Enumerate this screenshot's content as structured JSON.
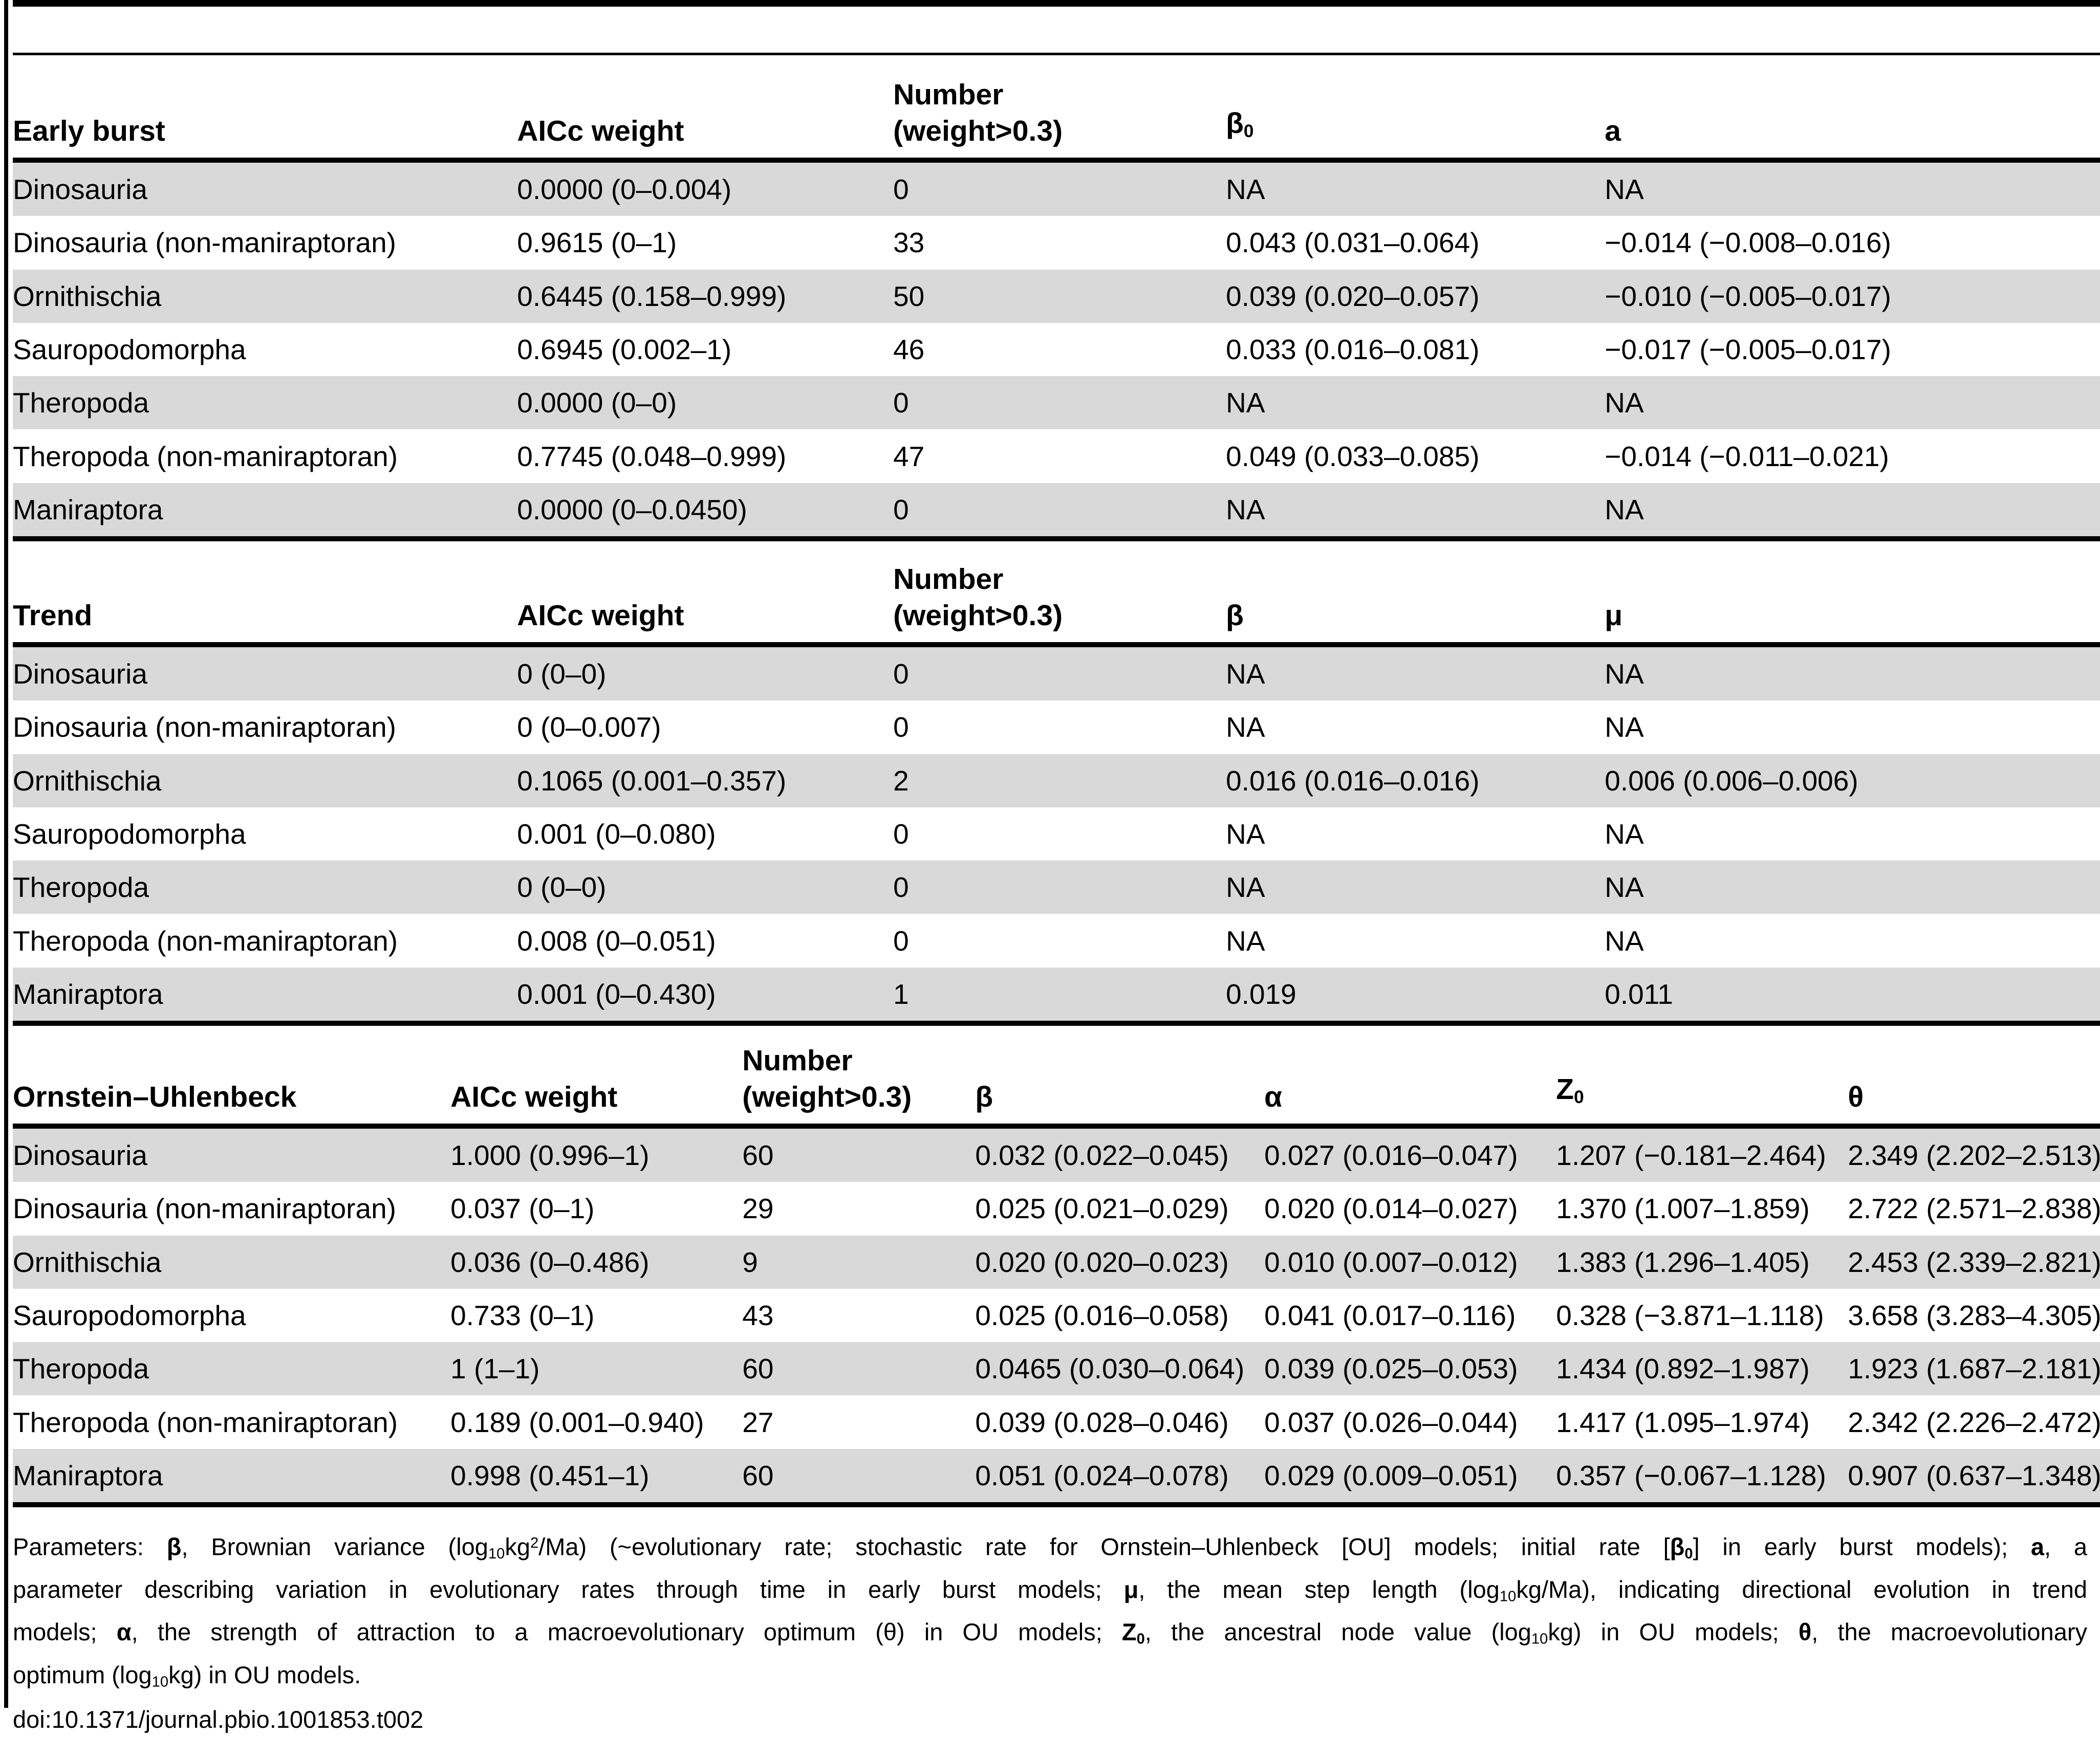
{
  "page": {
    "background": "#ffffff",
    "stripe_color": "#d9d9d9",
    "rule_color": "#000000"
  },
  "tables": [
    {
      "name": "early-burst",
      "headers": [
        {
          "lines": [
            [
              {
                "t": "Early burst"
              }
            ]
          ]
        },
        {
          "lines": [
            [
              {
                "t": "AICc weight"
              }
            ]
          ]
        },
        {
          "lines": [
            [
              {
                "t": "Number"
              }
            ],
            [
              {
                "t": "(weight>0.3)"
              }
            ]
          ]
        },
        {
          "lines": [
            [
              {
                "t": "β"
              },
              {
                "t": "0",
                "s": "sub"
              }
            ]
          ]
        },
        {
          "lines": [
            [
              {
                "t": "a"
              }
            ]
          ]
        }
      ],
      "rows": [
        [
          "Dinosauria",
          "0.0000 (0–0.004)",
          "0",
          "NA",
          "NA"
        ],
        [
          "Dinosauria (non-maniraptoran)",
          "0.9615 (0–1)",
          "33",
          "0.043 (0.031–0.064)",
          "−0.014 (−0.008–0.016)"
        ],
        [
          "Ornithischia",
          "0.6445 (0.158–0.999)",
          "50",
          "0.039 (0.020–0.057)",
          "−0.010 (−0.005–0.017)"
        ],
        [
          "Sauropodomorpha",
          "0.6945 (0.002–1)",
          "46",
          "0.033 (0.016–0.081)",
          "−0.017 (−0.005–0.017)"
        ],
        [
          "Theropoda",
          "0.0000 (0–0)",
          "0",
          "NA",
          "NA"
        ],
        [
          "Theropoda (non-maniraptoran)",
          "0.7745 (0.048–0.999)",
          "47",
          "0.049 (0.033–0.085)",
          "−0.014 (−0.011–0.021)"
        ],
        [
          "Maniraptora",
          "0.0000 (0–0.0450)",
          "0",
          "NA",
          "NA"
        ]
      ]
    },
    {
      "name": "trend",
      "headers": [
        {
          "lines": [
            [
              {
                "t": "Trend"
              }
            ]
          ]
        },
        {
          "lines": [
            [
              {
                "t": "AICc weight"
              }
            ]
          ]
        },
        {
          "lines": [
            [
              {
                "t": "Number"
              }
            ],
            [
              {
                "t": "(weight>0.3)"
              }
            ]
          ]
        },
        {
          "lines": [
            [
              {
                "t": "β"
              }
            ]
          ]
        },
        {
          "lines": [
            [
              {
                "t": "μ"
              }
            ]
          ]
        }
      ],
      "rows": [
        [
          "Dinosauria",
          "0 (0–0)",
          "0",
          "NA",
          "NA"
        ],
        [
          "Dinosauria (non-maniraptoran)",
          "0 (0–0.007)",
          "0",
          "NA",
          "NA"
        ],
        [
          "Ornithischia",
          "0.1065 (0.001–0.357)",
          "2",
          "0.016 (0.016–0.016)",
          "0.006 (0.006–0.006)"
        ],
        [
          "Sauropodomorpha",
          "0.001 (0–0.080)",
          "0",
          "NA",
          "NA"
        ],
        [
          "Theropoda",
          "0 (0–0)",
          "0",
          "NA",
          "NA"
        ],
        [
          "Theropoda (non-maniraptoran)",
          "0.008 (0–0.051)",
          "0",
          "NA",
          "NA"
        ],
        [
          "Maniraptora",
          "0.001 (0–0.430)",
          "1",
          "0.019",
          "0.011"
        ]
      ]
    },
    {
      "name": "ornstein-uhlenbeck",
      "headers": [
        {
          "lines": [
            [
              {
                "t": "Ornstein–Uhlenbeck"
              }
            ]
          ]
        },
        {
          "lines": [
            [
              {
                "t": "AICc weight"
              }
            ]
          ]
        },
        {
          "lines": [
            [
              {
                "t": "Number"
              }
            ],
            [
              {
                "t": "(weight>0.3)"
              }
            ]
          ]
        },
        {
          "lines": [
            [
              {
                "t": "β"
              }
            ]
          ]
        },
        {
          "lines": [
            [
              {
                "t": "α"
              }
            ]
          ]
        },
        {
          "lines": [
            [
              {
                "t": "Z"
              },
              {
                "t": "0",
                "s": "sub"
              }
            ]
          ]
        },
        {
          "lines": [
            [
              {
                "t": "θ"
              }
            ]
          ]
        }
      ],
      "rows": [
        [
          "Dinosauria",
          "1.000 (0.996–1)",
          "60",
          "0.032 (0.022–0.045)",
          "0.027 (0.016–0.047)",
          "1.207 (−0.181–2.464)",
          "2.349 (2.202–2.513)"
        ],
        [
          "Dinosauria (non-maniraptoran)",
          "0.037 (0–1)",
          "29",
          "0.025 (0.021–0.029)",
          "0.020 (0.014–0.027)",
          "1.370 (1.007–1.859)",
          "2.722 (2.571–2.838)"
        ],
        [
          "Ornithischia",
          "0.036 (0–0.486)",
          "9",
          "0.020 (0.020–0.023)",
          "0.010 (0.007–0.012)",
          "1.383 (1.296–1.405)",
          "2.453 (2.339–2.821)"
        ],
        [
          "Sauropodomorpha",
          "0.733 (0–1)",
          "43",
          "0.025 (0.016–0.058)",
          "0.041 (0.017–0.116)",
          "0.328 (−3.871–1.118)",
          "3.658 (3.283–4.305)"
        ],
        [
          "Theropoda",
          "1 (1–1)",
          "60",
          "0.0465 (0.030–0.064)",
          "0.039 (0.025–0.053)",
          "1.434 (0.892–1.987)",
          "1.923 (1.687–2.181)"
        ],
        [
          "Theropoda (non-maniraptoran)",
          "0.189 (0.001–0.940)",
          "27",
          "0.039 (0.028–0.046)",
          "0.037 (0.026–0.044)",
          "1.417 (1.095–1.974)",
          "2.342 (2.226–2.472)"
        ],
        [
          "Maniraptora",
          "0.998 (0.451–1)",
          "60",
          "0.051 (0.024–0.078)",
          "0.029 (0.009–0.051)",
          "0.357 (−0.067–1.128)",
          "0.907 (0.637–1.348)"
        ]
      ]
    }
  ],
  "footnote": {
    "lines": [
      [
        {
          "t": "Parameters: "
        },
        {
          "t": "β",
          "s": "b"
        },
        {
          "t": ", Brownian variance (log"
        },
        {
          "t": "10",
          "s": "sub"
        },
        {
          "t": "kg"
        },
        {
          "t": "2",
          "s": "sup"
        },
        {
          "t": "/Ma) (~evolutionary rate; stochastic rate for Ornstein–Uhlenbeck [OU] models; initial rate ["
        },
        {
          "t": "β",
          "s": "b"
        },
        {
          "t": "0",
          "s": "bsub"
        },
        {
          "t": "] in early burst models); "
        },
        {
          "t": "a",
          "s": "b"
        },
        {
          "t": ", a"
        }
      ],
      [
        {
          "t": "parameter describing variation in evolutionary rates through time in early burst models; "
        },
        {
          "t": "μ",
          "s": "b"
        },
        {
          "t": ", the mean step length (log"
        },
        {
          "t": "10",
          "s": "sub"
        },
        {
          "t": "kg/Ma), indicating directional evolution in trend"
        }
      ],
      [
        {
          "t": "models; "
        },
        {
          "t": "α",
          "s": "b"
        },
        {
          "t": ", the strength of attraction to a macroevolutionary optimum (θ) in OU models; "
        },
        {
          "t": "Z",
          "s": "b"
        },
        {
          "t": "0",
          "s": "bsub"
        },
        {
          "t": ", the ancestral node value (log"
        },
        {
          "t": "10",
          "s": "sub"
        },
        {
          "t": "kg) in OU models; "
        },
        {
          "t": "θ",
          "s": "b"
        },
        {
          "t": ", the macroevolutionary"
        }
      ],
      [
        {
          "t": "optimum (log"
        },
        {
          "t": "10",
          "s": "sub"
        },
        {
          "t": "kg) in OU models."
        }
      ]
    ],
    "doi": "doi:10.1371/journal.pbio.1001853.t002"
  }
}
